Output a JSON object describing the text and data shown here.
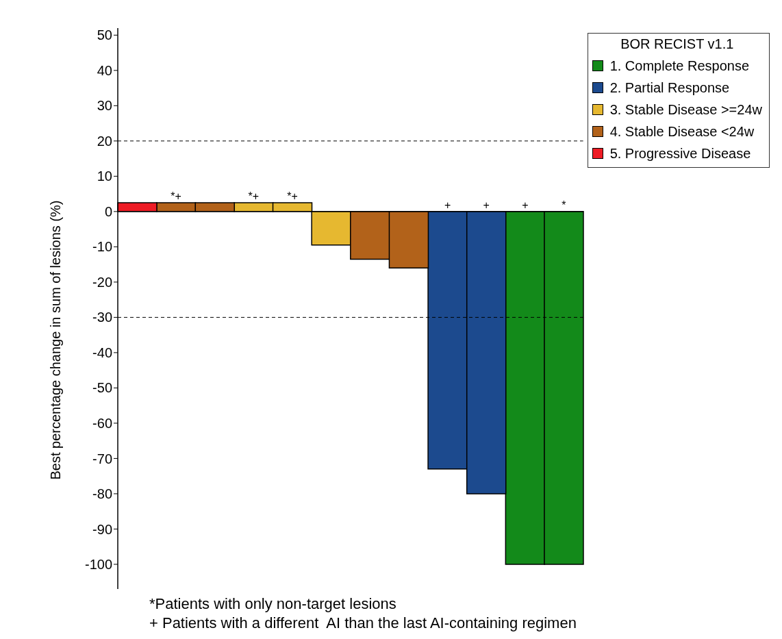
{
  "chart_data": {
    "type": "bar",
    "ylabel": "Best percentage change in sum of lesions (%)",
    "legend_title": "BOR RECIST v1.1",
    "legend": "top right",
    "stacked": true,
    "categories": [
      null,
      null,
      null,
      null,
      null,
      null,
      null,
      null,
      null,
      null,
      null,
      null
    ],
    "series": [
      {
        "name": "1. Complete Response",
        "color": "#138a1a",
        "values": [
          null,
          null,
          null,
          null,
          null,
          null,
          null,
          null,
          null,
          null,
          -100,
          -100
        ],
        "value_labels": [
          null,
          null,
          null,
          null,
          null,
          null,
          null,
          null,
          null,
          null,
          "+",
          "*"
        ]
      },
      {
        "name": "2. Partial Response",
        "color": "#1c4a8e",
        "values": [
          null,
          null,
          null,
          null,
          null,
          null,
          null,
          null,
          -73,
          -80,
          null,
          null
        ],
        "value_labels": [
          null,
          null,
          null,
          null,
          null,
          null,
          null,
          null,
          "+",
          "+",
          null,
          null
        ]
      },
      {
        "name": "3. Stable Disease >=24w",
        "color": "#e6b830",
        "values": [
          null,
          null,
          null,
          2.5,
          2.5,
          -9.5,
          null,
          null,
          null,
          null,
          null,
          null
        ],
        "value_labels": [
          null,
          null,
          null,
          "*+",
          "*+",
          null,
          null,
          null,
          null,
          null,
          null,
          null
        ]
      },
      {
        "name": "4. Stable Disease <24w",
        "color": "#b2621a",
        "values": [
          null,
          2.5,
          2.5,
          null,
          null,
          null,
          -13.5,
          -16,
          null,
          null,
          null,
          null
        ],
        "value_labels": [
          null,
          "*+",
          null,
          null,
          null,
          null,
          null,
          null,
          null,
          null,
          null,
          null
        ]
      },
      {
        "name": "5. Progressive Disease",
        "color": "#ee1c25",
        "values": [
          2.5,
          null,
          null,
          null,
          null,
          null,
          null,
          null,
          null,
          null,
          null,
          null
        ]
      }
    ],
    "ylim": [
      -107,
      52
    ],
    "yticks": [
      -100,
      -90,
      -80,
      -70,
      -60,
      -50,
      -40,
      -30,
      -20,
      -10,
      0,
      10,
      20,
      30,
      40,
      50
    ],
    "ref_lines": [
      {
        "axis": "y",
        "value": 20,
        "line_style": "dashed"
      },
      {
        "axis": "y",
        "value": -30,
        "line_style": "dashed"
      }
    ],
    "annotations": [
      "*Patients with only non-target lesions",
      "+ Patients with a different  AI than the last AI-containing regimen"
    ]
  }
}
